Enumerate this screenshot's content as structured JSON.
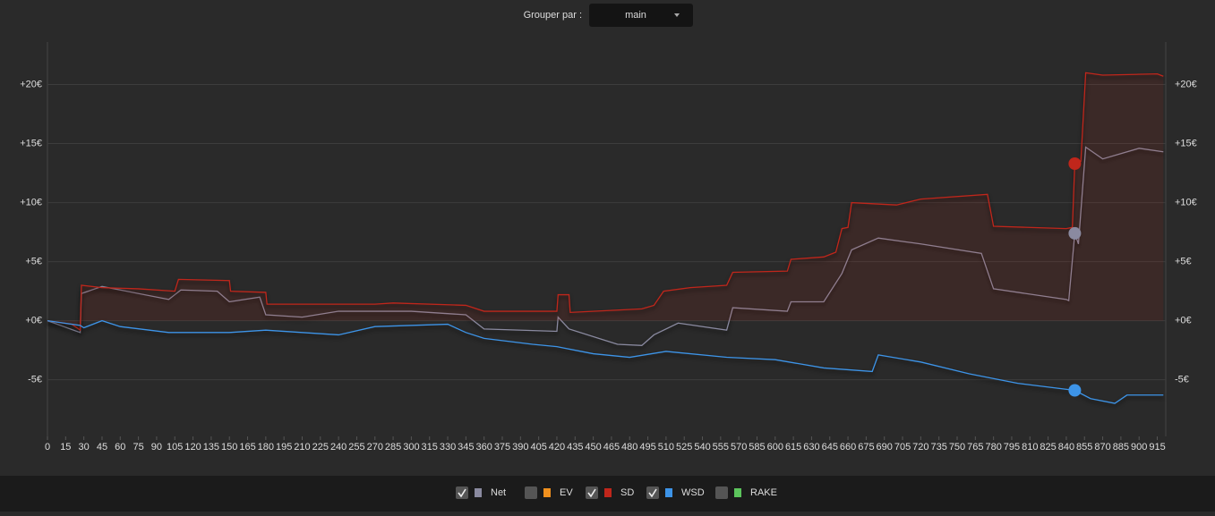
{
  "controls": {
    "group_label": "Grouper par :",
    "group_value": "main"
  },
  "chart_data": {
    "type": "line",
    "xlim": [
      0,
      922
    ],
    "xticks": [
      0,
      15,
      30,
      45,
      60,
      75,
      90,
      105,
      120,
      135,
      150,
      165,
      180,
      195,
      210,
      225,
      240,
      255,
      270,
      285,
      300,
      315,
      330,
      345,
      360,
      375,
      390,
      405,
      420,
      435,
      450,
      465,
      480,
      495,
      510,
      525,
      540,
      555,
      570,
      585,
      600,
      615,
      630,
      645,
      660,
      675,
      690,
      705,
      720,
      735,
      750,
      765,
      780,
      795,
      810,
      825,
      840,
      855,
      870,
      885,
      900,
      915
    ],
    "ylim": [
      -9.8,
      23.6
    ],
    "yticks": [
      {
        "value": -5,
        "label": "-5€"
      },
      {
        "value": 0,
        "label": "+0€"
      },
      {
        "value": 5,
        "label": "+5€"
      },
      {
        "value": 10,
        "label": "+10€"
      },
      {
        "value": 15,
        "label": "+15€"
      },
      {
        "value": 20,
        "label": "+20€"
      }
    ],
    "grid": true,
    "highlight_x": 847,
    "series": [
      {
        "name": "Net",
        "color": "#8a8aa0",
        "visible": true,
        "x": [
          0,
          27,
          28,
          45,
          60,
          100,
          110,
          140,
          150,
          175,
          180,
          210,
          240,
          300,
          345,
          360,
          420,
          421,
          430,
          470,
          490,
          500,
          520,
          560,
          565,
          610,
          613,
          640,
          655,
          663,
          685,
          720,
          770,
          780,
          840,
          842,
          847,
          850,
          856,
          870,
          900,
          920
        ],
        "values": [
          0,
          -1,
          2.3,
          2.9,
          2.6,
          1.8,
          2.6,
          2.5,
          1.6,
          2.0,
          0.5,
          0.3,
          0.8,
          0.8,
          0.5,
          -0.7,
          -0.9,
          0.3,
          -0.7,
          -2.0,
          -2.1,
          -1.2,
          -0.2,
          -0.8,
          1.1,
          0.8,
          1.6,
          1.6,
          4.0,
          6.0,
          7.0,
          6.5,
          5.7,
          2.7,
          1.8,
          1.7,
          7.4,
          6.5,
          14.7,
          13.7,
          14.6,
          14.3
        ]
      },
      {
        "name": "EV",
        "color": "#f0901e",
        "visible": false
      },
      {
        "name": "SD",
        "color": "#c0261b",
        "visible": true,
        "x": [
          0,
          20,
          27,
          28,
          45,
          75,
          105,
          108,
          150,
          151,
          180,
          181,
          270,
          285,
          345,
          360,
          420,
          421,
          430,
          431,
          470,
          490,
          500,
          508,
          530,
          560,
          565,
          610,
          613,
          640,
          650,
          655,
          660,
          663,
          700,
          720,
          775,
          780,
          840,
          845,
          847,
          852,
          856,
          870,
          915,
          920
        ],
        "values": [
          0,
          -0.3,
          -0.8,
          3.0,
          2.8,
          2.7,
          2.5,
          3.5,
          3.4,
          2.5,
          2.4,
          1.4,
          1.4,
          1.5,
          1.3,
          0.8,
          0.8,
          2.2,
          2.2,
          0.7,
          0.9,
          1.0,
          1.3,
          2.5,
          2.8,
          3.0,
          4.1,
          4.2,
          5.2,
          5.4,
          5.8,
          7.8,
          7.9,
          10.0,
          9.8,
          10.3,
          10.7,
          8.0,
          7.8,
          7.9,
          13.3,
          13.5,
          21.0,
          20.8,
          20.9,
          20.7
        ]
      },
      {
        "name": "WSD",
        "color": "#3d94e8",
        "visible": true,
        "x": [
          0,
          27,
          30,
          45,
          60,
          100,
          150,
          180,
          240,
          270,
          330,
          345,
          360,
          400,
          420,
          450,
          480,
          510,
          560,
          600,
          640,
          680,
          685,
          720,
          760,
          800,
          847,
          860,
          880,
          890,
          920
        ],
        "values": [
          0,
          -0.4,
          -0.6,
          0,
          -0.5,
          -1.0,
          -1.0,
          -0.8,
          -1.2,
          -0.5,
          -0.3,
          -1.0,
          -1.5,
          -2.0,
          -2.2,
          -2.8,
          -3.1,
          -2.6,
          -3.1,
          -3.3,
          -4.0,
          -4.3,
          -2.9,
          -3.5,
          -4.5,
          -5.3,
          -5.9,
          -6.6,
          -7.0,
          -6.3,
          -6.3
        ]
      },
      {
        "name": "RAKE",
        "color": "#5cc45c",
        "visible": false
      }
    ]
  }
}
